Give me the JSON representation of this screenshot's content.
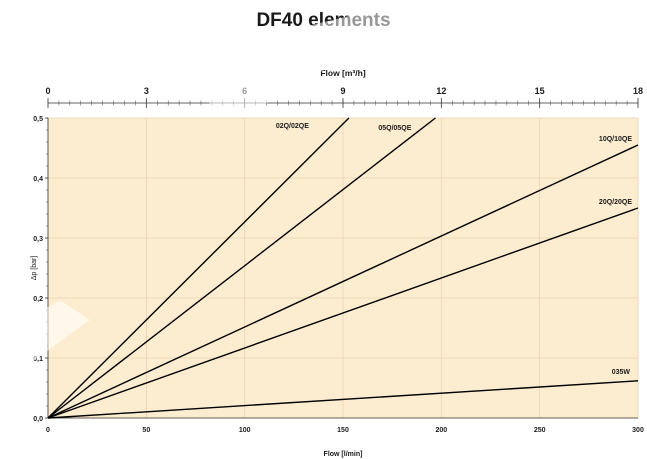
{
  "chart_data": {
    "type": "line",
    "title": "DF40 elements",
    "xlabel": "Flow [l/min]",
    "x2label": "Flow [m³/h]",
    "ylabel": "Δp [bar]",
    "xlim": [
      0,
      300
    ],
    "x2lim": [
      0,
      18
    ],
    "ylim": [
      0,
      0.5
    ],
    "x_ticks": [
      "0",
      "50",
      "100",
      "150",
      "200",
      "250",
      "300"
    ],
    "x2_ticks": [
      "0",
      "3",
      "6",
      "9",
      "12",
      "15",
      "18"
    ],
    "y_ticks": [
      "0,0",
      "0,1",
      "0,2",
      "0,3",
      "0,4",
      "0,5"
    ],
    "grid": true,
    "background_color": "#fdedd0",
    "line_color": "#000000",
    "series": [
      {
        "name": "02Q/02QE",
        "x": [
          0,
          153
        ],
        "y": [
          0,
          0.5
        ]
      },
      {
        "name": "05Q/05QE",
        "x": [
          0,
          197
        ],
        "y": [
          0,
          0.5
        ]
      },
      {
        "name": "10Q/10QE",
        "x": [
          0,
          300
        ],
        "y": [
          0,
          0.455
        ]
      },
      {
        "name": "20Q/20QE",
        "x": [
          0,
          300
        ],
        "y": [
          0,
          0.35
        ]
      },
      {
        "name": "035W",
        "x": [
          0,
          300
        ],
        "y": [
          0,
          0.062
        ]
      }
    ]
  }
}
